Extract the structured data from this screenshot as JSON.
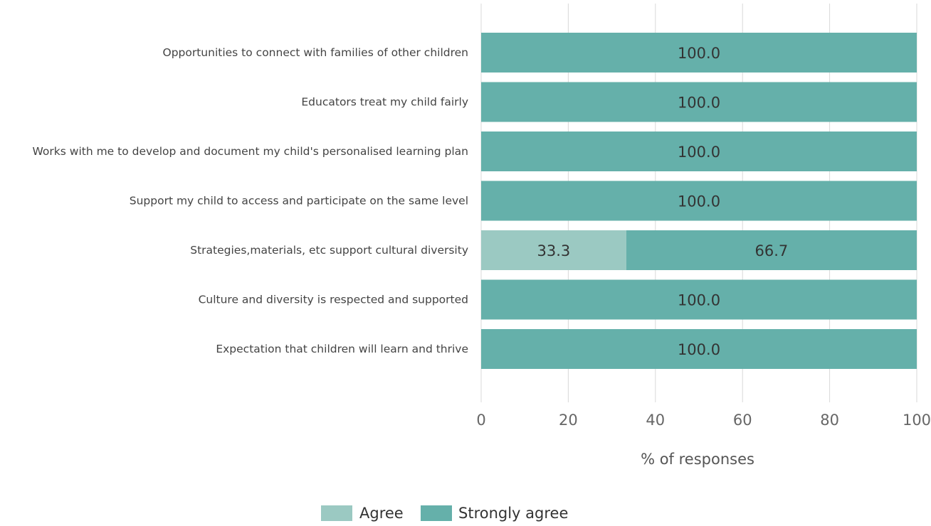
{
  "chart_data": {
    "type": "bar",
    "orientation": "horizontal",
    "stacked": true,
    "categories": [
      "Opportunities to connect with families of other children",
      "Educators treat my child fairly",
      "Works with me to develop and document my child's personalised learning plan",
      "Support my child to access and participate on the same level",
      "Strategies,materials, etc support cultural diversity",
      "Culture and diversity is respected and supported",
      "Expectation that children will learn and thrive"
    ],
    "series": [
      {
        "name": "Agree",
        "color": "#9bc9c2",
        "values": [
          0,
          0,
          0,
          0,
          33.3,
          0,
          0
        ]
      },
      {
        "name": "Strongly agree",
        "color": "#65b0aa",
        "values": [
          100.0,
          100.0,
          100.0,
          100.0,
          66.7,
          100.0,
          100.0
        ]
      }
    ],
    "xlabel": "% of responses",
    "ylabel": "",
    "xlim": [
      0,
      100
    ],
    "xticks": [
      0,
      20,
      40,
      60,
      80,
      100
    ],
    "grid": true,
    "legend_position": "bottom-center",
    "data_label_decimals": 1
  }
}
